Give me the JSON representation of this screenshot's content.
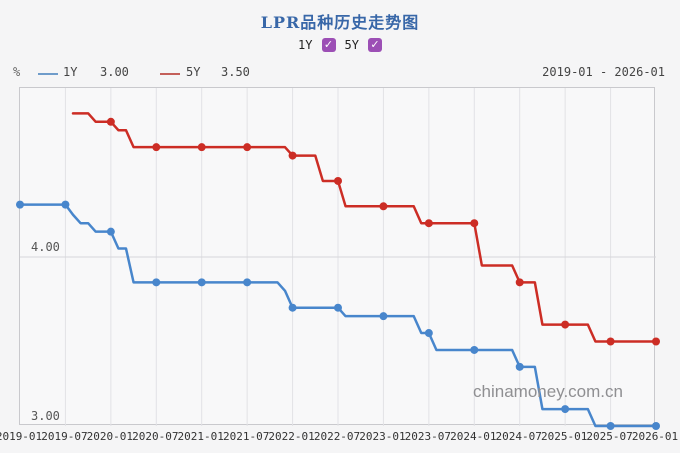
{
  "title": "LPR品种历史走势图",
  "controls": {
    "items": [
      {
        "label": "1Y",
        "checked": true,
        "check_glyph": "✓"
      },
      {
        "label": "5Y",
        "checked": true,
        "check_glyph": "✓"
      }
    ]
  },
  "legend": {
    "unit": "%",
    "series": [
      {
        "label": "1Y",
        "current_value": "3.00",
        "color": "#4886cc"
      },
      {
        "label": "5Y",
        "current_value": "3.50",
        "color": "#cc2d25"
      }
    ],
    "date_range": "2019-01 - 2026-01"
  },
  "watermark": "chinamoney.com.cn",
  "chart_data": {
    "type": "line",
    "subtype": "monthly-step",
    "title": "LPR品种历史走势图",
    "x_start": "2019-01",
    "x_end": "2026-01",
    "x_tick_labels": [
      "2019-01",
      "2019-07",
      "2020-01",
      "2020-07",
      "2021-01",
      "2021-07",
      "2022-01",
      "2022-07",
      "2023-01",
      "2023-07",
      "2024-01",
      "2024-07",
      "2025-01",
      "2025-07",
      "2026-01"
    ],
    "ylim": [
      3.0,
      5.0
    ],
    "y_gridlines": [
      4.0
    ],
    "y_tick_labels": [
      "4.00",
      "3.00"
    ],
    "grid": "vertical-at-ticks",
    "legend_position": "top-left",
    "marker_every_months": 6,
    "series": [
      {
        "name": "1Y",
        "color": "#4886cc",
        "changes": [
          [
            "2019-01",
            4.31
          ],
          [
            "2019-08",
            4.25
          ],
          [
            "2019-09",
            4.2
          ],
          [
            "2019-11",
            4.15
          ],
          [
            "2020-02",
            4.05
          ],
          [
            "2020-04",
            3.85
          ],
          [
            "2021-12",
            3.8
          ],
          [
            "2022-01",
            3.7
          ],
          [
            "2022-08",
            3.65
          ],
          [
            "2023-06",
            3.55
          ],
          [
            "2023-08",
            3.45
          ],
          [
            "2024-07",
            3.35
          ],
          [
            "2024-10",
            3.1
          ],
          [
            "2025-05",
            3.0
          ]
        ]
      },
      {
        "name": "5Y",
        "color": "#cc2d25",
        "changes": [
          [
            "2019-08",
            4.85
          ],
          [
            "2019-11",
            4.8
          ],
          [
            "2020-02",
            4.75
          ],
          [
            "2020-04",
            4.65
          ],
          [
            "2022-01",
            4.6
          ],
          [
            "2022-05",
            4.45
          ],
          [
            "2022-08",
            4.3
          ],
          [
            "2023-06",
            4.2
          ],
          [
            "2024-02",
            3.95
          ],
          [
            "2024-07",
            3.85
          ],
          [
            "2024-10",
            3.6
          ],
          [
            "2025-05",
            3.5
          ]
        ]
      }
    ]
  }
}
